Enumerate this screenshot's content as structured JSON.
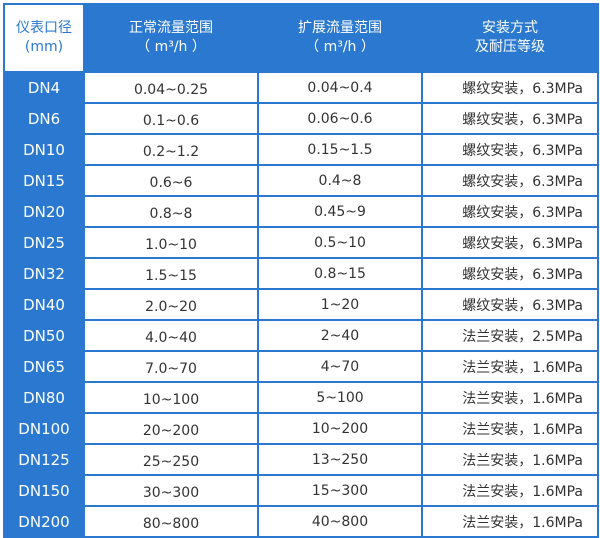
{
  "header": {
    "col1": [
      "仪表口径",
      "(mm)"
    ],
    "col2": [
      "正常流量范围",
      "（ m³/h ）"
    ],
    "col3": [
      "扩展流量范围",
      "（ m³/h ）"
    ],
    "col4": [
      "安装方式",
      "及耐压等级"
    ]
  },
  "rows": [
    {
      "dn": "DN4",
      "normal": "0.04~0.25",
      "extended": "0.04~0.4",
      "install": "螺纹安装，6.3MPa"
    },
    {
      "dn": "DN6",
      "normal": "0.1~0.6",
      "extended": "0.06~0.6",
      "install": "螺纹安装，6.3MPa"
    },
    {
      "dn": "DN10",
      "normal": "0.2~1.2",
      "extended": "0.15~1.5",
      "install": "螺纹安装，6.3MPa"
    },
    {
      "dn": "DN15",
      "normal": "0.6~6",
      "extended": "0.4~8",
      "install": "螺纹安装，6.3MPa"
    },
    {
      "dn": "DN20",
      "normal": "0.8~8",
      "extended": "0.45~9",
      "install": "螺纹安装，6.3MPa"
    },
    {
      "dn": "DN25",
      "normal": "1.0~10",
      "extended": "0.5~10",
      "install": "螺纹安装，6.3MPa"
    },
    {
      "dn": "DN32",
      "normal": "1.5~15",
      "extended": "0.8~15",
      "install": "螺纹安装，6.3MPa"
    },
    {
      "dn": "DN40",
      "normal": "2.0~20",
      "extended": "1~20",
      "install": "螺纹安装，6.3MPa"
    },
    {
      "dn": "DN50",
      "normal": "4.0~40",
      "extended": "2~40",
      "install": "法兰安装，2.5MPa"
    },
    {
      "dn": "DN65",
      "normal": "7.0~70",
      "extended": "4~70",
      "install": "法兰安装，1.6MPa"
    },
    {
      "dn": "DN80",
      "normal": "10~100",
      "extended": "5~100",
      "install": "法兰安装，1.6MPa"
    },
    {
      "dn": "DN100",
      "normal": "20~200",
      "extended": "10~200",
      "install": "法兰安装，1.6MPa"
    },
    {
      "dn": "DN125",
      "normal": "25~250",
      "extended": "13~250",
      "install": "法兰安装，1.6MPa"
    },
    {
      "dn": "DN150",
      "normal": "30~300",
      "extended": "15~300",
      "install": "法兰安装，1.6MPa"
    },
    {
      "dn": "DN200",
      "normal": "80~800",
      "extended": "40~800",
      "install": "法兰安装，1.6MPa"
    }
  ],
  "colors": {
    "accent": "#2a78d0",
    "text": "#333333"
  }
}
